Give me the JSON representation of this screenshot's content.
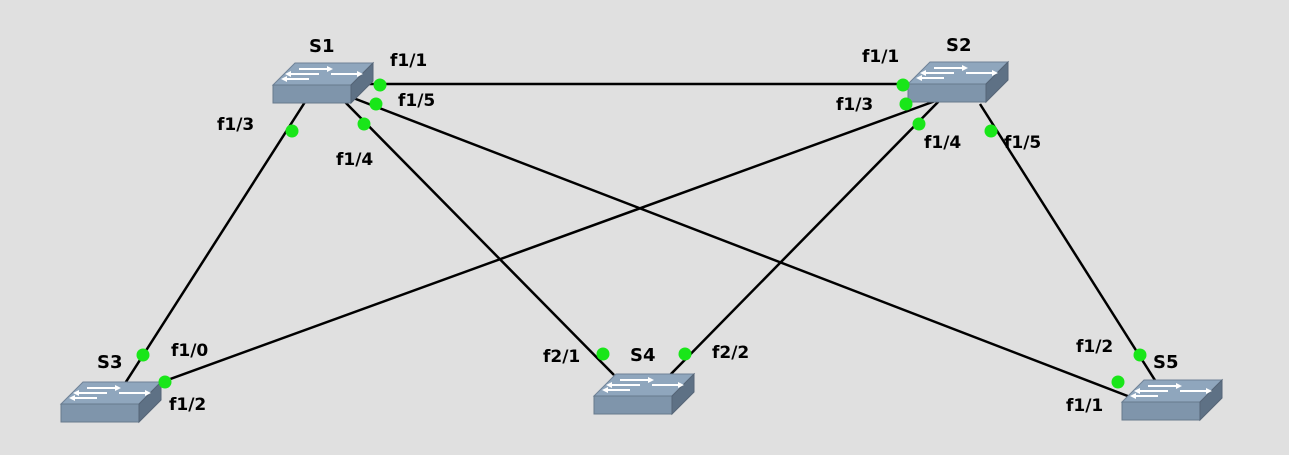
{
  "nodes": [
    {
      "id": "S1",
      "label": "S1"
    },
    {
      "id": "S2",
      "label": "S2"
    },
    {
      "id": "S3",
      "label": "S3"
    },
    {
      "id": "S4",
      "label": "S4"
    },
    {
      "id": "S5",
      "label": "S5"
    }
  ],
  "links": [
    {
      "from": "S1",
      "from_port": "f1/1",
      "to": "S2",
      "to_port": "f1/1"
    },
    {
      "from": "S1",
      "from_port": "f1/3",
      "to": "S3",
      "to_port": "f1/0"
    },
    {
      "from": "S1",
      "from_port": "f1/4",
      "to": "S4",
      "to_port": "f2/1"
    },
    {
      "from": "S1",
      "from_port": "f1/5",
      "to": "S5",
      "to_port": "f1/1"
    },
    {
      "from": "S2",
      "from_port": "f1/3",
      "to": "S3",
      "to_port": "f1/2"
    },
    {
      "from": "S2",
      "from_port": "f1/4",
      "to": "S4",
      "to_port": "f2/2"
    },
    {
      "from": "S2",
      "from_port": "f1/5",
      "to": "S5",
      "to_port": "f1/2"
    }
  ],
  "colors": {
    "background": "#e0e0e0",
    "link": "#000000",
    "port_up": "#19e619",
    "switch_body": "#8fa6bd"
  },
  "icons": {
    "switch": "switch-icon"
  }
}
